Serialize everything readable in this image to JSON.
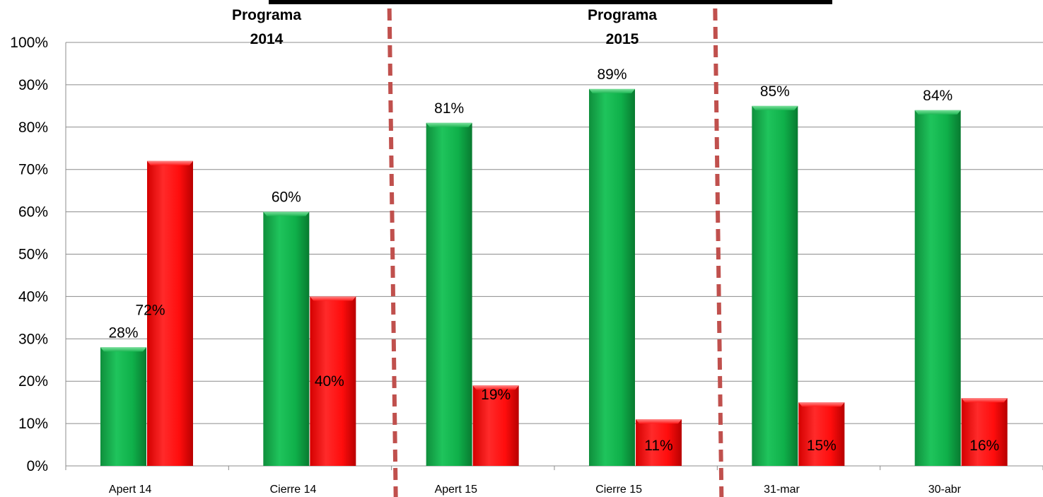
{
  "chart_data": {
    "type": "bar",
    "categories": [
      "Apert 14",
      "Cierre 14",
      "Apert 15",
      "Cierre 15",
      "31-mar",
      "30-abr"
    ],
    "series": [
      {
        "values": [
          28,
          60,
          81,
          89,
          85,
          84
        ],
        "color": "#1fb755"
      },
      {
        "values": [
          72,
          40,
          19,
          11,
          15,
          16
        ],
        "color": "#ff1a1a"
      }
    ],
    "data_labels": [
      [
        "28%",
        "60%",
        "81%",
        "89%",
        "85%",
        "84%"
      ],
      [
        "72%",
        "40%",
        "19%",
        "11%",
        "15%",
        "16%"
      ]
    ],
    "y_ticks": [
      "0%",
      "10%",
      "20%",
      "30%",
      "40%",
      "50%",
      "60%",
      "70%",
      "80%",
      "90%",
      "100%"
    ],
    "ylim": [
      0,
      100
    ],
    "grid": true,
    "legend": "none",
    "annotations": {
      "program_2014": [
        "Programa",
        "2014"
      ],
      "program_2015": [
        "Programa",
        "2015"
      ]
    },
    "separators_after_category": [
      "Cierre 14",
      "Cierre 15"
    ]
  }
}
